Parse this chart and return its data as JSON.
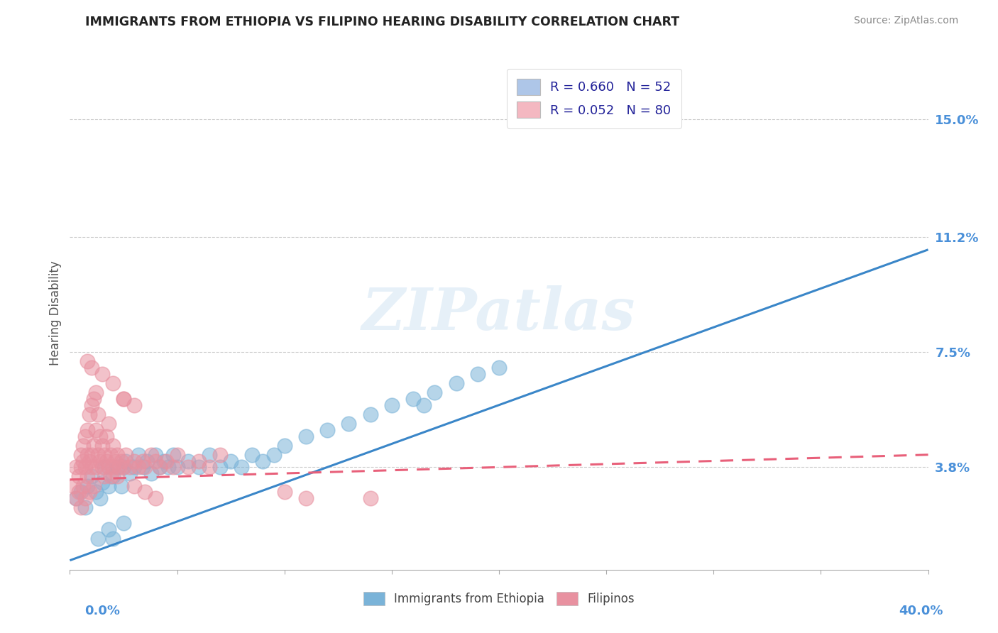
{
  "title": "IMMIGRANTS FROM ETHIOPIA VS FILIPINO HEARING DISABILITY CORRELATION CHART",
  "source": "Source: ZipAtlas.com",
  "ylabel": "Hearing Disability",
  "ytick_labels": [
    "3.8%",
    "7.5%",
    "11.2%",
    "15.0%"
  ],
  "ytick_values": [
    0.038,
    0.075,
    0.112,
    0.15
  ],
  "xlim": [
    0.0,
    0.4
  ],
  "ylim": [
    0.005,
    0.17
  ],
  "legend_entries": [
    {
      "label": "R = 0.660   N = 52",
      "color": "#aec6e8"
    },
    {
      "label": "R = 0.052   N = 80",
      "color": "#f4b8c1"
    }
  ],
  "legend_labels_bottom": [
    "Immigrants from Ethiopia",
    "Filipinos"
  ],
  "watermark": "ZIPatlas",
  "ethiopia_color": "#7ab3d8",
  "filipino_color": "#e891a0",
  "ethiopia_line_color": "#3a86c8",
  "filipino_line_color": "#e8607a",
  "ethiopia_line_y0": 0.008,
  "ethiopia_line_y1": 0.108,
  "filipino_line_y0": 0.034,
  "filipino_line_y1": 0.042,
  "ethiopia_scatter": [
    [
      0.003,
      0.028
    ],
    [
      0.005,
      0.03
    ],
    [
      0.007,
      0.025
    ],
    [
      0.008,
      0.032
    ],
    [
      0.01,
      0.035
    ],
    [
      0.012,
      0.03
    ],
    [
      0.014,
      0.028
    ],
    [
      0.015,
      0.033
    ],
    [
      0.016,
      0.038
    ],
    [
      0.018,
      0.032
    ],
    [
      0.02,
      0.035
    ],
    [
      0.022,
      0.038
    ],
    [
      0.024,
      0.032
    ],
    [
      0.025,
      0.038
    ],
    [
      0.026,
      0.04
    ],
    [
      0.028,
      0.036
    ],
    [
      0.03,
      0.038
    ],
    [
      0.032,
      0.042
    ],
    [
      0.034,
      0.038
    ],
    [
      0.036,
      0.04
    ],
    [
      0.038,
      0.036
    ],
    [
      0.04,
      0.042
    ],
    [
      0.042,
      0.038
    ],
    [
      0.044,
      0.04
    ],
    [
      0.046,
      0.038
    ],
    [
      0.048,
      0.042
    ],
    [
      0.05,
      0.038
    ],
    [
      0.055,
      0.04
    ],
    [
      0.06,
      0.038
    ],
    [
      0.065,
      0.042
    ],
    [
      0.07,
      0.038
    ],
    [
      0.075,
      0.04
    ],
    [
      0.08,
      0.038
    ],
    [
      0.085,
      0.042
    ],
    [
      0.09,
      0.04
    ],
    [
      0.095,
      0.042
    ],
    [
      0.1,
      0.045
    ],
    [
      0.11,
      0.048
    ],
    [
      0.12,
      0.05
    ],
    [
      0.13,
      0.052
    ],
    [
      0.14,
      0.055
    ],
    [
      0.15,
      0.058
    ],
    [
      0.16,
      0.06
    ],
    [
      0.165,
      0.058
    ],
    [
      0.17,
      0.062
    ],
    [
      0.18,
      0.065
    ],
    [
      0.19,
      0.068
    ],
    [
      0.2,
      0.07
    ],
    [
      0.013,
      0.015
    ],
    [
      0.018,
      0.018
    ],
    [
      0.02,
      0.015
    ],
    [
      0.025,
      0.02
    ]
  ],
  "filipino_scatter": [
    [
      0.002,
      0.032
    ],
    [
      0.003,
      0.028
    ],
    [
      0.003,
      0.038
    ],
    [
      0.004,
      0.035
    ],
    [
      0.004,
      0.03
    ],
    [
      0.005,
      0.042
    ],
    [
      0.005,
      0.038
    ],
    [
      0.005,
      0.025
    ],
    [
      0.006,
      0.04
    ],
    [
      0.006,
      0.032
    ],
    [
      0.006,
      0.045
    ],
    [
      0.007,
      0.038
    ],
    [
      0.007,
      0.048
    ],
    [
      0.007,
      0.028
    ],
    [
      0.008,
      0.042
    ],
    [
      0.008,
      0.05
    ],
    [
      0.008,
      0.035
    ],
    [
      0.009,
      0.04
    ],
    [
      0.009,
      0.055
    ],
    [
      0.009,
      0.03
    ],
    [
      0.01,
      0.042
    ],
    [
      0.01,
      0.058
    ],
    [
      0.01,
      0.038
    ],
    [
      0.011,
      0.06
    ],
    [
      0.011,
      0.045
    ],
    [
      0.011,
      0.032
    ],
    [
      0.012,
      0.05
    ],
    [
      0.012,
      0.038
    ],
    [
      0.012,
      0.062
    ],
    [
      0.013,
      0.042
    ],
    [
      0.013,
      0.055
    ],
    [
      0.014,
      0.04
    ],
    [
      0.014,
      0.048
    ],
    [
      0.015,
      0.038
    ],
    [
      0.015,
      0.045
    ],
    [
      0.016,
      0.042
    ],
    [
      0.016,
      0.035
    ],
    [
      0.017,
      0.04
    ],
    [
      0.017,
      0.048
    ],
    [
      0.018,
      0.038
    ],
    [
      0.018,
      0.052
    ],
    [
      0.019,
      0.042
    ],
    [
      0.019,
      0.035
    ],
    [
      0.02,
      0.038
    ],
    [
      0.02,
      0.045
    ],
    [
      0.021,
      0.04
    ],
    [
      0.022,
      0.035
    ],
    [
      0.022,
      0.042
    ],
    [
      0.023,
      0.038
    ],
    [
      0.024,
      0.04
    ],
    [
      0.025,
      0.038
    ],
    [
      0.025,
      0.06
    ],
    [
      0.026,
      0.042
    ],
    [
      0.028,
      0.038
    ],
    [
      0.03,
      0.04
    ],
    [
      0.03,
      0.058
    ],
    [
      0.032,
      0.038
    ],
    [
      0.034,
      0.04
    ],
    [
      0.035,
      0.038
    ],
    [
      0.038,
      0.042
    ],
    [
      0.04,
      0.04
    ],
    [
      0.042,
      0.038
    ],
    [
      0.045,
      0.04
    ],
    [
      0.048,
      0.038
    ],
    [
      0.05,
      0.042
    ],
    [
      0.055,
      0.038
    ],
    [
      0.06,
      0.04
    ],
    [
      0.065,
      0.038
    ],
    [
      0.07,
      0.042
    ],
    [
      0.1,
      0.03
    ],
    [
      0.11,
      0.028
    ],
    [
      0.015,
      0.068
    ],
    [
      0.008,
      0.072
    ],
    [
      0.01,
      0.07
    ],
    [
      0.02,
      0.065
    ],
    [
      0.025,
      0.06
    ],
    [
      0.14,
      0.028
    ],
    [
      0.03,
      0.032
    ],
    [
      0.035,
      0.03
    ],
    [
      0.04,
      0.028
    ]
  ]
}
